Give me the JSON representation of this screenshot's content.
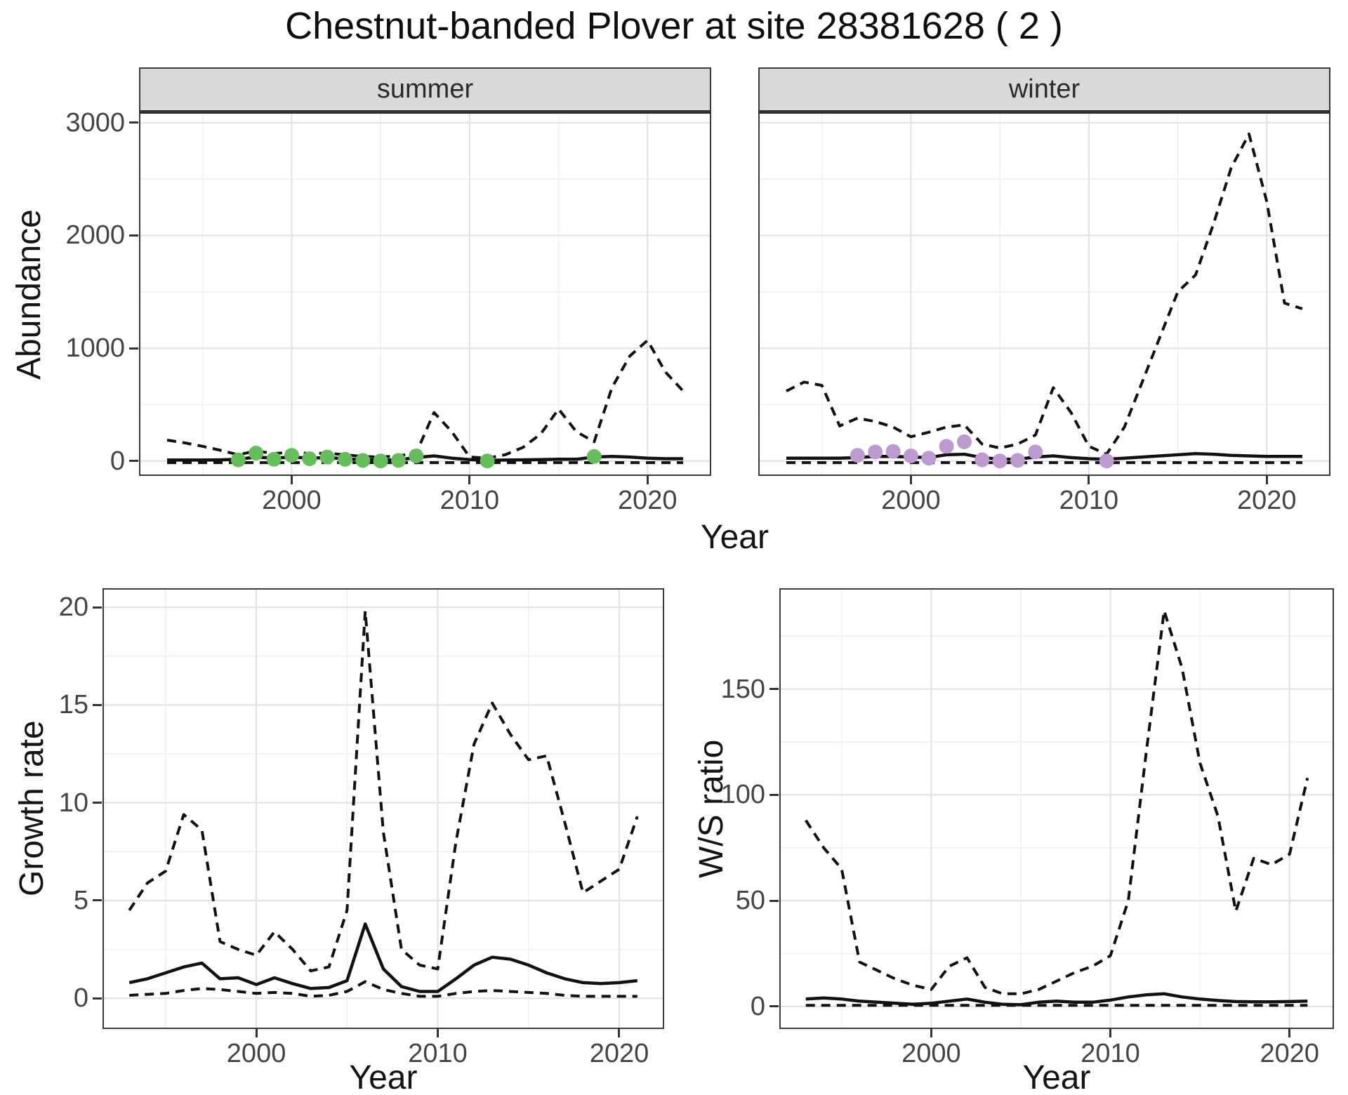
{
  "title": "Chestnut-banded Plover at site 28381628 ( 2 )",
  "top": {
    "ylab": "Abundance",
    "xlab": "Year",
    "facets": [
      "summer",
      "winter"
    ]
  },
  "bottom_left": {
    "ylab": "Growth rate",
    "xlab": "Year"
  },
  "bottom_right": {
    "ylab": "W/S ratio",
    "xlab": "Year"
  },
  "colors": {
    "summer_point": "#66BD5C",
    "winter_point": "#BC9AD0",
    "line": "#111111",
    "grid_major": "#e3e3e3",
    "grid_minor": "#f1f1f1",
    "strip_bg": "#d9d9d9"
  },
  "chart_data": [
    {
      "id": "abundance-summer",
      "type": "line",
      "facet_label": "summer",
      "ylabel": "Abundance",
      "xlabel": "Year",
      "show_y_labels": true,
      "xlim": [
        1991.5,
        2023.5
      ],
      "ylim": [
        -120,
        3080
      ],
      "xticks": [
        2000,
        2010,
        2020
      ],
      "xminor": [
        1995,
        2005,
        2015
      ],
      "yticks": [
        0,
        1000,
        2000,
        3000
      ],
      "yminor": [
        500,
        1500,
        2500
      ],
      "x": [
        1993,
        1994,
        1995,
        1996,
        1997,
        1998,
        1999,
        2000,
        2001,
        2002,
        2003,
        2004,
        2005,
        2006,
        2007,
        2008,
        2009,
        2010,
        2011,
        2012,
        2013,
        2014,
        2015,
        2016,
        2017,
        2018,
        2019,
        2020,
        2021,
        2022
      ],
      "series": [
        {
          "name": "estimate",
          "style": "solid",
          "values": [
            8,
            8,
            8,
            10,
            15,
            35,
            25,
            35,
            25,
            30,
            20,
            10,
            8,
            10,
            30,
            45,
            25,
            12,
            5,
            8,
            10,
            12,
            15,
            15,
            35,
            40,
            35,
            25,
            20,
            20
          ]
        },
        {
          "name": "upper_ci",
          "style": "dashed",
          "values": [
            185,
            160,
            130,
            95,
            55,
            90,
            65,
            80,
            65,
            70,
            55,
            40,
            35,
            45,
            70,
            430,
            260,
            35,
            25,
            55,
            120,
            240,
            460,
            260,
            170,
            650,
            930,
            1070,
            790,
            620
          ]
        },
        {
          "name": "lower_ci",
          "style": "dashed",
          "values": [
            -15,
            -15,
            -15,
            -15,
            -15,
            -15,
            -15,
            -15,
            -15,
            -15,
            -15,
            -15,
            -15,
            -15,
            -15,
            -15,
            -15,
            -15,
            -15,
            -15,
            -15,
            -15,
            -15,
            -15,
            -15,
            -15,
            -15,
            -15,
            -15,
            -15
          ]
        }
      ],
      "points": {
        "color_key": "summer_point",
        "data": [
          [
            1997,
            10
          ],
          [
            1998,
            70
          ],
          [
            1999,
            15
          ],
          [
            2000,
            50
          ],
          [
            2001,
            20
          ],
          [
            2002,
            35
          ],
          [
            2003,
            15
          ],
          [
            2004,
            5
          ],
          [
            2005,
            0
          ],
          [
            2006,
            5
          ],
          [
            2007,
            45
          ],
          [
            2011,
            0
          ],
          [
            2017,
            40
          ]
        ]
      }
    },
    {
      "id": "abundance-winter",
      "type": "line",
      "facet_label": "winter",
      "ylabel": "Abundance",
      "xlabel": "Year",
      "show_y_labels": false,
      "xlim": [
        1991.5,
        2023.5
      ],
      "ylim": [
        -120,
        3080
      ],
      "xticks": [
        2000,
        2010,
        2020
      ],
      "xminor": [
        1995,
        2005,
        2015
      ],
      "yticks": [
        0,
        1000,
        2000,
        3000
      ],
      "yminor": [
        500,
        1500,
        2500
      ],
      "x": [
        1993,
        1994,
        1995,
        1996,
        1997,
        1998,
        1999,
        2000,
        2001,
        2002,
        2003,
        2004,
        2005,
        2006,
        2007,
        2008,
        2009,
        2010,
        2011,
        2012,
        2013,
        2014,
        2015,
        2016,
        2017,
        2018,
        2019,
        2020,
        2021,
        2022
      ],
      "series": [
        {
          "name": "estimate",
          "style": "solid",
          "values": [
            25,
            25,
            25,
            25,
            30,
            40,
            40,
            35,
            30,
            55,
            60,
            30,
            15,
            15,
            35,
            45,
            30,
            20,
            15,
            25,
            35,
            45,
            55,
            65,
            60,
            50,
            45,
            40,
            40,
            40
          ]
        },
        {
          "name": "upper_ci",
          "style": "dashed",
          "values": [
            620,
            700,
            670,
            310,
            380,
            350,
            300,
            215,
            255,
            300,
            320,
            150,
            115,
            150,
            230,
            650,
            430,
            130,
            60,
            300,
            700,
            1100,
            1500,
            1650,
            2100,
            2600,
            2900,
            2300,
            1400,
            1350
          ]
        },
        {
          "name": "lower_ci",
          "style": "dashed",
          "values": [
            -15,
            -15,
            -15,
            -15,
            -15,
            -15,
            -15,
            -15,
            -15,
            -15,
            -15,
            -15,
            -15,
            -15,
            -15,
            -15,
            -15,
            -15,
            -15,
            -15,
            -15,
            -15,
            -15,
            -15,
            -15,
            -15,
            -15,
            -15,
            -15,
            -15
          ]
        }
      ],
      "points": {
        "color_key": "winter_point",
        "data": [
          [
            1997,
            50
          ],
          [
            1998,
            80
          ],
          [
            1999,
            85
          ],
          [
            2000,
            45
          ],
          [
            2001,
            25
          ],
          [
            2002,
            130
          ],
          [
            2003,
            170
          ],
          [
            2004,
            10
          ],
          [
            2005,
            0
          ],
          [
            2006,
            5
          ],
          [
            2007,
            80
          ],
          [
            2011,
            0
          ]
        ]
      }
    },
    {
      "id": "growth-rate",
      "type": "line",
      "ylabel": "Growth rate",
      "xlabel": "Year",
      "show_y_labels": true,
      "xlim": [
        1991.6,
        2022.4
      ],
      "ylim": [
        -1.5,
        20.9
      ],
      "xticks": [
        2000,
        2010,
        2020
      ],
      "xminor": [
        1995,
        2005,
        2015
      ],
      "yticks": [
        0,
        5,
        10,
        15,
        20
      ],
      "yminor": [
        2.5,
        7.5,
        12.5,
        17.5
      ],
      "x": [
        1993,
        1994,
        1995,
        1996,
        1997,
        1998,
        1999,
        2000,
        2001,
        2002,
        2003,
        2004,
        2005,
        2006,
        2007,
        2008,
        2009,
        2010,
        2011,
        2012,
        2013,
        2014,
        2015,
        2016,
        2017,
        2018,
        2019,
        2020,
        2021
      ],
      "series": [
        {
          "name": "estimate",
          "style": "solid",
          "values": [
            0.8,
            1.0,
            1.3,
            1.6,
            1.8,
            1.0,
            1.05,
            0.7,
            1.05,
            0.75,
            0.5,
            0.55,
            0.9,
            3.8,
            1.5,
            0.6,
            0.35,
            0.35,
            1.0,
            1.7,
            2.1,
            2.0,
            1.7,
            1.3,
            1.0,
            0.8,
            0.75,
            0.8,
            0.9
          ]
        },
        {
          "name": "upper_ci",
          "style": "dashed",
          "values": [
            4.5,
            5.9,
            6.5,
            9.4,
            8.6,
            2.9,
            2.5,
            2.2,
            3.4,
            2.5,
            1.4,
            1.6,
            4.5,
            19.8,
            8.5,
            2.5,
            1.7,
            1.5,
            8.0,
            13.0,
            15.1,
            13.5,
            12.2,
            12.4,
            9.0,
            5.4,
            6.0,
            6.6,
            9.3
          ]
        },
        {
          "name": "lower_ci",
          "style": "dashed",
          "values": [
            0.15,
            0.2,
            0.25,
            0.4,
            0.5,
            0.45,
            0.35,
            0.25,
            0.3,
            0.25,
            0.1,
            0.15,
            0.35,
            0.85,
            0.45,
            0.25,
            0.1,
            0.1,
            0.25,
            0.35,
            0.4,
            0.35,
            0.3,
            0.25,
            0.15,
            0.1,
            0.1,
            0.1,
            0.1
          ]
        }
      ]
    },
    {
      "id": "ws-ratio",
      "type": "line",
      "ylabel": "W/S ratio",
      "xlabel": "Year",
      "show_y_labels": true,
      "xlim": [
        1991.6,
        2022.4
      ],
      "ylim": [
        -10,
        197
      ],
      "xticks": [
        2000,
        2010,
        2020
      ],
      "xminor": [
        1995,
        2005,
        2015
      ],
      "yticks": [
        0,
        50,
        100,
        150
      ],
      "yminor": [
        25,
        75,
        125,
        175
      ],
      "x": [
        1993,
        1994,
        1995,
        1996,
        1997,
        1998,
        1999,
        2000,
        2001,
        2002,
        2003,
        2004,
        2005,
        2006,
        2007,
        2008,
        2009,
        2010,
        2011,
        2012,
        2013,
        2014,
        2015,
        2016,
        2017,
        2018,
        2019,
        2020,
        2021
      ],
      "series": [
        {
          "name": "estimate",
          "style": "solid",
          "values": [
            3.5,
            4,
            3.5,
            2.5,
            2,
            1.5,
            1,
            1.5,
            2.5,
            3.5,
            2,
            1,
            0.8,
            2,
            2.5,
            2,
            2,
            3,
            4.5,
            5.5,
            6,
            4.5,
            3.5,
            2.8,
            2.3,
            2.2,
            2.2,
            2.3,
            2.5
          ]
        },
        {
          "name": "upper_ci",
          "style": "dashed",
          "values": [
            88,
            75,
            65,
            21,
            17,
            13,
            10,
            8,
            19,
            23,
            9,
            6,
            6,
            8,
            12,
            16,
            19,
            24,
            50,
            120,
            187,
            160,
            115,
            90,
            45,
            70,
            67,
            72,
            108
          ]
        },
        {
          "name": "lower_ci",
          "style": "dashed",
          "values": [
            0.5,
            0.5,
            0.5,
            0.5,
            0.5,
            0.5,
            0.5,
            0.5,
            0.5,
            0.5,
            0.5,
            0.5,
            0.5,
            0.5,
            0.5,
            0.5,
            0.5,
            0.5,
            0.5,
            0.5,
            0.5,
            0.5,
            0.5,
            0.5,
            0.5,
            0.5,
            0.5,
            0.5,
            0.5
          ]
        }
      ]
    }
  ]
}
